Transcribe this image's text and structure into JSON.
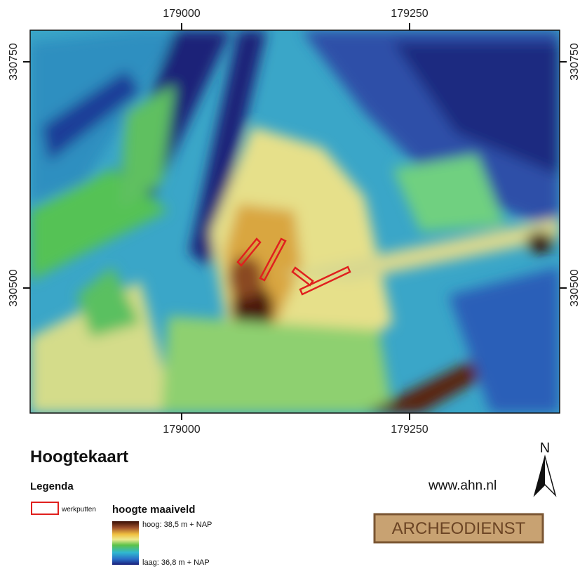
{
  "map": {
    "x_ticks": [
      179000,
      179250
    ],
    "y_ticks": [
      330750,
      330500
    ]
  },
  "title": "Hoogtekaart",
  "legend": {
    "heading": "Legenda",
    "werkputten": "werkputten",
    "hoogte": "hoogte maaiveld",
    "high": "hoog: 38,5 m + NAP",
    "low": "laag: 36,8 m + NAP"
  },
  "source": "www.ahn.nl",
  "logo": "ARCHEODIENST",
  "north": "N"
}
